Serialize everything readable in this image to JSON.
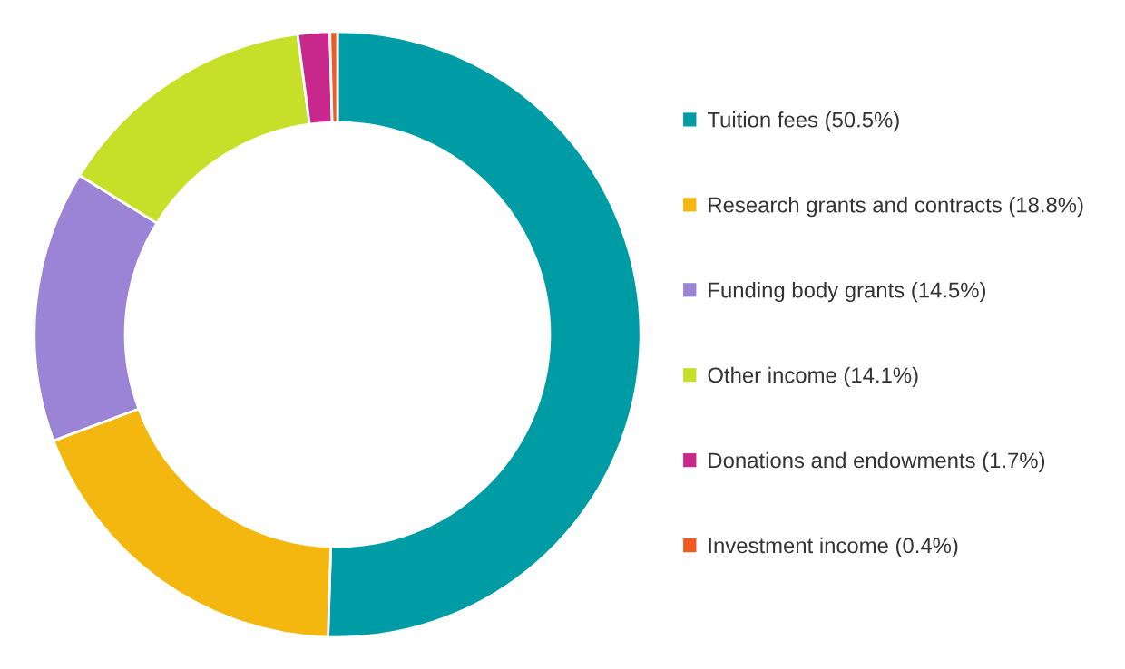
{
  "chart_data": {
    "type": "donut",
    "categories": [
      "Tuition fees (50.5%)",
      "Research grants and contracts (18.8%)",
      "Funding body grants (14.5%)",
      "Other income (14.1%)",
      "Donations and endowments (1.7%)",
      "Investment income (0.4%)"
    ],
    "values": [
      50.5,
      18.8,
      14.5,
      14.1,
      1.7,
      0.4
    ],
    "colors": [
      "#009ca6",
      "#f4b70f",
      "#9b84d6",
      "#c6e02a",
      "#c8288c",
      "#f05a22"
    ],
    "legend": "right"
  }
}
